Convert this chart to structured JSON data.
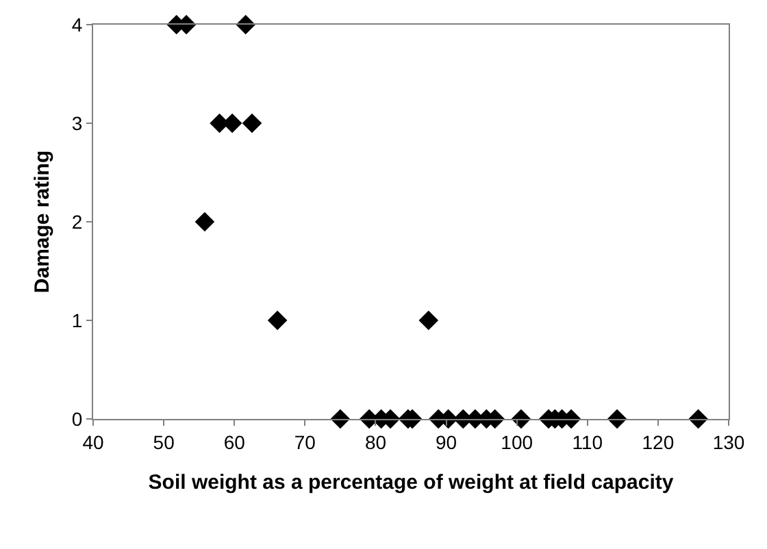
{
  "chart_data": {
    "type": "scatter",
    "xlabel": "Soil weight as a percentage of weight at field capacity",
    "ylabel": "Damage rating",
    "x": [
      51.8,
      53.2,
      61.6,
      57.9,
      59.7,
      62.5,
      55.8,
      66.1,
      87.5,
      75.0,
      79.1,
      80.8,
      82.1,
      84.6,
      85.2,
      88.9,
      90.3,
      92.4,
      94.1,
      95.7,
      96.9,
      100.6,
      104.5,
      105.4,
      106.4,
      107.7,
      114.2,
      125.7
    ],
    "values": [
      4,
      4,
      4,
      3,
      3,
      3,
      2,
      1,
      1,
      0,
      0,
      0,
      0,
      0,
      0,
      0,
      0,
      0,
      0,
      0,
      0,
      0,
      0,
      0,
      0,
      0,
      0,
      0
    ],
    "color": "#000000",
    "marker": "diamond",
    "xlim": [
      40,
      130
    ],
    "xticks": [
      40,
      50,
      60,
      70,
      80,
      90,
      100,
      110,
      120,
      130
    ],
    "ylim": [
      0,
      4
    ],
    "yticks": [
      0,
      1,
      2,
      3,
      4
    ],
    "grid": false
  }
}
